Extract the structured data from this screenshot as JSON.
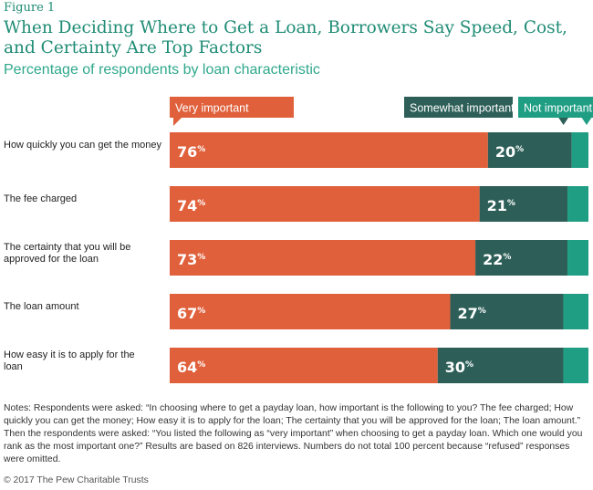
{
  "figure_label": "Figure 1",
  "title": "When Deciding Where to Get a Loan, Borrowers Say Speed, Cost, and Certainty Are Top Factors",
  "subtitle": "Percentage of respondents by loan characteristic",
  "colors": {
    "very_important": "#e0603b",
    "somewhat_important": "#2d5f58",
    "not_important": "#1f9e84",
    "title": "#1f8c75"
  },
  "chart_data": {
    "type": "bar",
    "orientation": "horizontal",
    "stacked": true,
    "categories": [
      "How quickly you can get the money",
      "The fee charged",
      "The certainty that you will be approved for the loan",
      "The loan amount",
      "How easy it is to apply for the loan"
    ],
    "series": [
      {
        "name": "Very important",
        "values": [
          76,
          74,
          73,
          67,
          64
        ]
      },
      {
        "name": "Somewhat important",
        "values": [
          20,
          21,
          22,
          27,
          30
        ]
      },
      {
        "name": "Not important",
        "values": [
          2,
          4,
          4,
          5,
          5
        ]
      }
    ],
    "value_suffix": "%",
    "xlim": [
      0,
      100
    ],
    "legend_position": "top"
  },
  "notes": "Notes: Respondents were asked: “In choosing where to get a payday loan, how important is the following to you? The fee charged; How quickly you can get the money; How easy it is to apply for the loan; The certainty that you will be approved for the loan; The loan amount.” Then the respondents were asked: “You listed the following as “very important” when choosing to get a payday loan. Which one would you rank as the most important one?” Results are based on 826 interviews. Numbers do not total 100 percent because “refused” responses were omitted.",
  "copyright": "© 2017 The Pew Charitable Trusts"
}
